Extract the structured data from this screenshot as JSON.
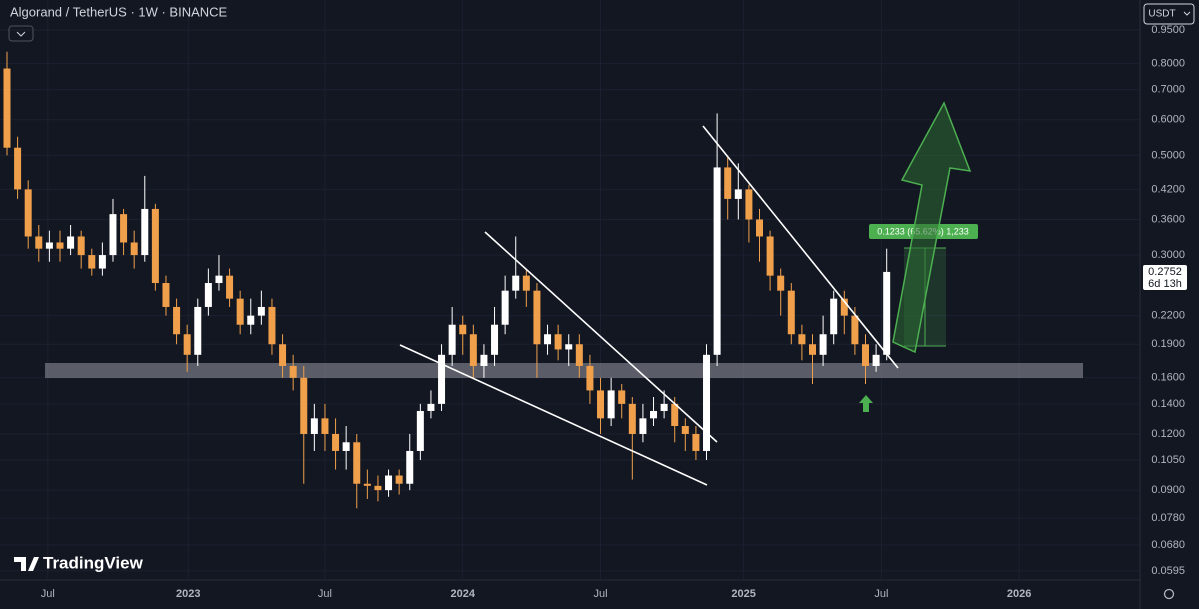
{
  "chart_data": {
    "type": "candlestick",
    "title": "Algorand / TetherUS · 1W · BINANCE",
    "currency": "USDT",
    "brand": "TradingView",
    "countdown": "6d 13h",
    "measure_label": "0.1233 (65.62%) 1,233",
    "up_color": "#ffffff",
    "down_color": "#f0a04b",
    "log_scale": true,
    "ylim": [
      0.0568,
      1.108
    ],
    "yticks": [
      {
        "value": 0.95,
        "label": "0.9500"
      },
      {
        "value": 0.8,
        "label": "0.8000"
      },
      {
        "value": 0.7,
        "label": "0.7000"
      },
      {
        "value": 0.6,
        "label": "0.6000"
      },
      {
        "value": 0.5,
        "label": "0.5000"
      },
      {
        "value": 0.42,
        "label": "0.4200"
      },
      {
        "value": 0.36,
        "label": "0.3600"
      },
      {
        "value": 0.3,
        "label": "0.3000"
      },
      {
        "value": 0.22,
        "label": "0.2200"
      },
      {
        "value": 0.19,
        "label": "0.1900"
      },
      {
        "value": 0.16,
        "label": "0.1600"
      },
      {
        "value": 0.14,
        "label": "0.1400"
      },
      {
        "value": 0.12,
        "label": "0.1200"
      },
      {
        "value": 0.105,
        "label": "0.1050"
      },
      {
        "value": 0.09,
        "label": "0.0900"
      },
      {
        "value": 0.078,
        "label": "0.0780"
      },
      {
        "value": 0.068,
        "label": "0.0680"
      },
      {
        "value": 0.0595,
        "label": "0.0595"
      }
    ],
    "xlim": [
      -0.66,
      106.9
    ],
    "xticks": [
      {
        "value": 3.85,
        "label": "Jul"
      },
      {
        "value": 17.1,
        "label": "2023"
      },
      {
        "value": 30,
        "label": "Jul"
      },
      {
        "value": 43,
        "label": "2024"
      },
      {
        "value": 56,
        "label": "Jul"
      },
      {
        "value": 69.5,
        "label": "2025"
      },
      {
        "value": 82.5,
        "label": "Jul"
      },
      {
        "value": 95.5,
        "label": "2026"
      }
    ],
    "open": [
      0.78,
      0.52,
      0.42,
      0.33,
      0.31,
      0.32,
      0.31,
      0.33,
      0.3,
      0.28,
      0.3,
      0.37,
      0.32,
      0.3,
      0.38,
      0.26,
      0.23,
      0.2,
      0.18,
      0.23,
      0.26,
      0.27,
      0.24,
      0.21,
      0.22,
      0.23,
      0.19,
      0.17,
      0.16,
      0.12,
      0.13,
      0.12,
      0.11,
      0.115,
      0.093,
      0.092,
      0.09,
      0.097,
      0.093,
      0.11,
      0.135,
      0.14,
      0.18,
      0.21,
      0.2,
      0.17,
      0.18,
      0.21,
      0.25,
      0.27,
      0.25,
      0.19,
      0.2,
      0.185,
      0.19,
      0.17,
      0.15,
      0.13,
      0.15,
      0.14,
      0.12,
      0.13,
      0.135,
      0.14,
      0.125,
      0.12,
      0.11,
      0.18,
      0.47,
      0.4,
      0.42,
      0.36,
      0.33,
      0.27,
      0.25,
      0.2,
      0.19,
      0.18,
      0.2,
      0.24,
      0.22,
      0.19,
      0.17,
      0.18
    ],
    "high": [
      0.85,
      0.55,
      0.44,
      0.35,
      0.34,
      0.34,
      0.35,
      0.34,
      0.31,
      0.32,
      0.4,
      0.38,
      0.34,
      0.45,
      0.39,
      0.27,
      0.24,
      0.21,
      0.24,
      0.28,
      0.3,
      0.28,
      0.25,
      0.24,
      0.25,
      0.24,
      0.2,
      0.18,
      0.17,
      0.14,
      0.14,
      0.13,
      0.125,
      0.12,
      0.1,
      0.097,
      0.1,
      0.1,
      0.12,
      0.14,
      0.15,
      0.19,
      0.23,
      0.22,
      0.21,
      0.19,
      0.23,
      0.27,
      0.33,
      0.28,
      0.26,
      0.21,
      0.21,
      0.2,
      0.2,
      0.18,
      0.16,
      0.16,
      0.155,
      0.145,
      0.14,
      0.145,
      0.15,
      0.145,
      0.13,
      0.125,
      0.19,
      0.62,
      0.5,
      0.48,
      0.43,
      0.38,
      0.34,
      0.28,
      0.26,
      0.21,
      0.2,
      0.22,
      0.25,
      0.25,
      0.23,
      0.2,
      0.19,
      0.31
    ],
    "low": [
      0.5,
      0.4,
      0.31,
      0.29,
      0.29,
      0.29,
      0.3,
      0.28,
      0.27,
      0.27,
      0.29,
      0.3,
      0.28,
      0.29,
      0.25,
      0.22,
      0.19,
      0.165,
      0.17,
      0.22,
      0.25,
      0.23,
      0.2,
      0.2,
      0.21,
      0.18,
      0.16,
      0.15,
      0.093,
      0.11,
      0.11,
      0.1,
      0.1,
      0.082,
      0.086,
      0.085,
      0.087,
      0.088,
      0.09,
      0.105,
      0.13,
      0.135,
      0.17,
      0.18,
      0.16,
      0.16,
      0.17,
      0.2,
      0.24,
      0.23,
      0.16,
      0.18,
      0.175,
      0.17,
      0.16,
      0.14,
      0.12,
      0.125,
      0.13,
      0.095,
      0.115,
      0.125,
      0.13,
      0.115,
      0.11,
      0.105,
      0.105,
      0.17,
      0.36,
      0.36,
      0.32,
      0.29,
      0.25,
      0.22,
      0.19,
      0.175,
      0.155,
      0.17,
      0.19,
      0.2,
      0.18,
      0.155,
      0.165,
      0.175
    ],
    "close": [
      0.52,
      0.42,
      0.33,
      0.31,
      0.32,
      0.31,
      0.33,
      0.3,
      0.28,
      0.3,
      0.37,
      0.32,
      0.3,
      0.38,
      0.26,
      0.23,
      0.2,
      0.18,
      0.23,
      0.26,
      0.27,
      0.24,
      0.21,
      0.22,
      0.23,
      0.19,
      0.17,
      0.16,
      0.12,
      0.13,
      0.12,
      0.11,
      0.115,
      0.093,
      0.092,
      0.09,
      0.097,
      0.093,
      0.11,
      0.135,
      0.14,
      0.18,
      0.21,
      0.2,
      0.17,
      0.18,
      0.21,
      0.25,
      0.27,
      0.25,
      0.19,
      0.2,
      0.185,
      0.19,
      0.17,
      0.15,
      0.13,
      0.15,
      0.14,
      0.12,
      0.13,
      0.135,
      0.14,
      0.125,
      0.12,
      0.11,
      0.18,
      0.47,
      0.4,
      0.42,
      0.36,
      0.33,
      0.27,
      0.25,
      0.2,
      0.19,
      0.18,
      0.2,
      0.24,
      0.22,
      0.19,
      0.17,
      0.18,
      0.2752
    ]
  }
}
